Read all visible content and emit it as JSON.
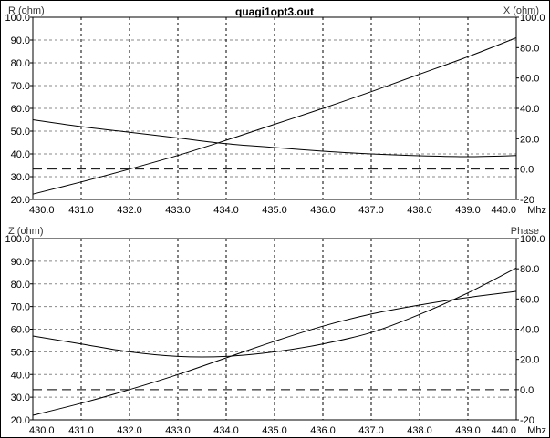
{
  "window": {
    "title": "quagi1opt3.out",
    "colors": {
      "background": "#ffffff",
      "frame": "#000000",
      "curve": "#000000",
      "grid": "#888888"
    }
  },
  "chart_data": [
    {
      "type": "line",
      "left_axis_label": "R (ohm)",
      "right_axis_label": "X (ohm)",
      "x_unit_label": "Mhz",
      "xlim": [
        430,
        440
      ],
      "ylim_left": [
        20,
        100
      ],
      "ylim_right": [
        -20,
        100
      ],
      "x_ticks": [
        "430.0",
        "431.0",
        "432.0",
        "433.0",
        "434.0",
        "435.0",
        "436.0",
        "437.0",
        "438.0",
        "439.0",
        "440.0"
      ],
      "left_ticks": [
        "20.0",
        "30.0",
        "40.0",
        "50.0",
        "60.0",
        "70.0",
        "80.0",
        "90.0",
        "100.0"
      ],
      "right_ticks": [
        "-20",
        "0.0",
        "20.0",
        "40.0",
        "60.0",
        "80.0",
        "100.0"
      ],
      "reference_line_right": 0,
      "grid": true,
      "x": [
        430,
        431,
        432,
        433,
        434,
        435,
        436,
        437,
        438,
        439,
        440
      ],
      "series": [
        {
          "axis": "left",
          "values": [
            55.0,
            52.0,
            49.5,
            47.0,
            44.5,
            42.8,
            41.2,
            40.0,
            39.2,
            38.8,
            39.3
          ]
        },
        {
          "axis": "right",
          "values": [
            -16.5,
            -8.5,
            0.0,
            9.0,
            19.0,
            29.5,
            40.0,
            51.0,
            62.5,
            74.0,
            86.5
          ]
        }
      ]
    },
    {
      "type": "line",
      "left_axis_label": "Z (ohm)",
      "right_axis_label": "Phase",
      "x_unit_label": "Mhz",
      "xlim": [
        430,
        440
      ],
      "ylim_left": [
        20,
        100
      ],
      "ylim_right": [
        -20,
        100
      ],
      "x_ticks": [
        "430.0",
        "431.0",
        "432.0",
        "433.0",
        "434.0",
        "435.0",
        "436.0",
        "437.0",
        "438.0",
        "439.0",
        "440.0"
      ],
      "left_ticks": [
        "20.0",
        "30.0",
        "40.0",
        "50.0",
        "60.0",
        "70.0",
        "80.0",
        "90.0",
        "100.0"
      ],
      "right_ticks": [
        "-20",
        "0.0",
        "20.0",
        "40.0",
        "60.0",
        "80.0",
        "100.0"
      ],
      "reference_line_right": 0,
      "grid": true,
      "x": [
        430,
        431,
        432,
        433,
        434,
        435,
        436,
        437,
        438,
        439,
        440
      ],
      "series": [
        {
          "axis": "left",
          "values": [
            57.0,
            53.5,
            50.0,
            48.0,
            48.0,
            50.0,
            53.5,
            58.5,
            66.5,
            76.0,
            87.0
          ]
        },
        {
          "axis": "right",
          "values": [
            -17.0,
            -9.0,
            0.0,
            10.0,
            21.0,
            32.0,
            42.0,
            50.0,
            56.0,
            61.0,
            65.0
          ]
        }
      ]
    }
  ]
}
